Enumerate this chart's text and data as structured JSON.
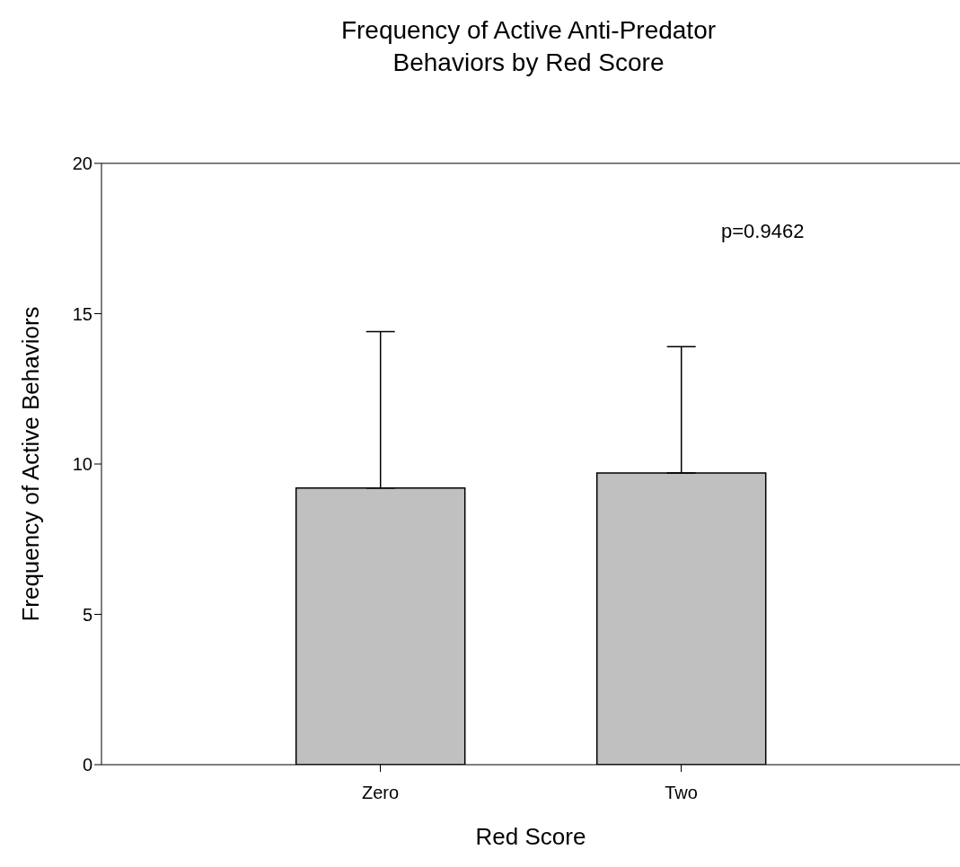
{
  "chart_data": {
    "type": "bar",
    "title": "Frequency of Active Anti-Predator\nBehaviors by Red Score",
    "xlabel": "Red Score",
    "ylabel": "Frequency of Active Behaviors",
    "categories": [
      "Zero",
      "Two"
    ],
    "values": [
      9.2,
      9.7
    ],
    "errors": [
      [
        9.2,
        14.4
      ],
      [
        9.7,
        13.9
      ]
    ],
    "color": "#c0c0c0",
    "ylim": [
      0,
      20
    ],
    "yticks": [
      0,
      5,
      10,
      15,
      20
    ],
    "annotations": [
      "p=0.9462"
    ],
    "grid": false,
    "legend": false
  }
}
